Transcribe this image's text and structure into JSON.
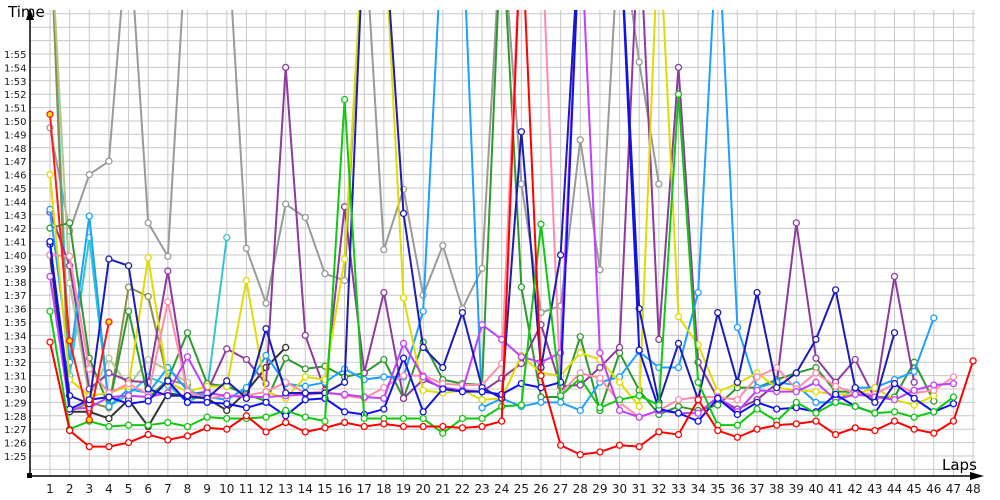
{
  "chart_data": {
    "type": "line",
    "title": "",
    "ylabel": "Time",
    "xlabel": "Laps",
    "ylim_seconds": [
      84,
      118
    ],
    "y_ticks": [
      {
        "value": 85,
        "label": "1:25"
      },
      {
        "value": 86,
        "label": "1:26"
      },
      {
        "value": 87,
        "label": "1:27"
      },
      {
        "value": 88,
        "label": "1:28"
      },
      {
        "value": 89,
        "label": "1:29"
      },
      {
        "value": 90,
        "label": "1:30"
      },
      {
        "value": 91,
        "label": "1:31"
      },
      {
        "value": 92,
        "label": "1:32"
      },
      {
        "value": 93,
        "label": "1:33"
      },
      {
        "value": 94,
        "label": "1:34"
      },
      {
        "value": 95,
        "label": "1:35"
      },
      {
        "value": 96,
        "label": "1:36"
      },
      {
        "value": 97,
        "label": "1:37"
      },
      {
        "value": 98,
        "label": "1:38"
      },
      {
        "value": 99,
        "label": "1:39"
      },
      {
        "value": 100,
        "label": "1:40"
      },
      {
        "value": 101,
        "label": "1:41"
      },
      {
        "value": 102,
        "label": "1:42"
      },
      {
        "value": 103,
        "label": "1:43"
      },
      {
        "value": 104,
        "label": "1:44"
      },
      {
        "value": 105,
        "label": "1:45"
      },
      {
        "value": 106,
        "label": "1:46"
      },
      {
        "value": 107,
        "label": "1:47"
      },
      {
        "value": 108,
        "label": "1:48"
      },
      {
        "value": 109,
        "label": "1:49"
      },
      {
        "value": 110,
        "label": "1:50"
      },
      {
        "value": 111,
        "label": "1:51"
      },
      {
        "value": 112,
        "label": "1:52"
      },
      {
        "value": 113,
        "label": "1:53"
      },
      {
        "value": 114,
        "label": "1:54"
      },
      {
        "value": 115,
        "label": "1:55"
      }
    ],
    "x_ticks": [
      "1",
      "2",
      "3",
      "4",
      "5",
      "6",
      "7",
      "8",
      "9",
      "10",
      "11",
      "12",
      "13",
      "14",
      "15",
      "16",
      "17",
      "18",
      "19",
      "20",
      "21",
      "22",
      "23",
      "24",
      "25",
      "26",
      "27",
      "28",
      "29",
      "30",
      "31",
      "32",
      "33",
      "34",
      "35",
      "36",
      "37",
      "38",
      "39",
      "40",
      "41",
      "42",
      "43",
      "44",
      "45",
      "46",
      "47",
      "48"
    ],
    "grid": true,
    "series": [
      {
        "name": "gray",
        "color": "#9a9a9a",
        "values": [
          109.5,
          101.8,
          106.0,
          107.0,
          125,
          102.4,
          99.9,
          125,
          125,
          125,
          100.5,
          96.4,
          103.8,
          102.8,
          98.6,
          98.1,
          125,
          100.4,
          104.9,
          97.0,
          100.7,
          96.0,
          99.0,
          125,
          105.3,
          95.7,
          96.2,
          108.6,
          98.9,
          125,
          114.4,
          105.3
        ]
      },
      {
        "name": "cyan",
        "color": "#33c6d0",
        "values": [
          125,
          91.0,
          101.3,
          88.7,
          89.6,
          90.9,
          90.3,
          89.0,
          89.8,
          101.3
        ]
      },
      {
        "name": "olive",
        "color": "#8e8e4a",
        "values": [
          125,
          88.3,
          89.0,
          88.6,
          97.6,
          96.9,
          90.7,
          90.3
        ]
      },
      {
        "name": "khaki",
        "color": "#b4c88c",
        "values": [
          125,
          97.9,
          89.4,
          92.3,
          90.2,
          92.2,
          91.4,
          90.5
        ]
      },
      {
        "name": "black",
        "color": "#333333",
        "values": [
          100.0,
          88.3,
          88.3,
          87.8,
          89.2,
          87.2,
          89.7,
          89.4,
          89.3,
          88.4,
          89.8,
          91.6,
          93.1
        ]
      },
      {
        "name": "dark-green",
        "color": "#2e9a2e",
        "values": [
          102.0,
          102.4,
          92.3,
          88.7,
          95.8,
          89.3,
          90.7,
          94.2,
          90.4,
          90.2,
          89.6,
          89.1,
          92.3,
          91.5,
          91.7,
          90.9,
          91.2,
          92.2,
          89.3,
          93.5,
          90.7,
          90.4,
          90.3,
          125,
          97.6,
          89.4,
          89.4,
          93.9,
          88.4,
          92.7,
          89.9,
          88.1,
          88.7,
          88.4,
          88.8,
          90.1,
          90.1,
          90.7,
          91.2,
          91.6,
          89.8,
          89.8,
          89.4,
          89.4,
          92.0,
          89.1
        ]
      },
      {
        "name": "purple",
        "color": "#8e3a9e",
        "values": [
          103.2,
          99.2,
          90.0,
          91.2,
          90.6,
          90.5,
          98.8,
          89.6,
          89.8,
          93.0,
          92.2,
          90.4,
          114.0,
          94.0,
          89.9,
          103.6,
          91.2,
          97.2,
          89.3,
          90.7,
          90.1,
          89.9,
          89.8,
          90.8,
          91.9,
          94.8,
          90.2,
          90.3,
          91.6,
          93.1,
          125,
          93.7,
          114.0,
          92.0,
          89.3,
          88.5,
          89.2,
          90.4,
          102.4,
          92.3,
          90.5,
          92.2,
          89.3,
          98.4,
          90.5
        ]
      },
      {
        "name": "light-blue",
        "color": "#1ea0ff",
        "values": [
          103.4,
          92.0,
          102.9,
          88.7,
          90.0,
          89.7,
          91.6,
          89.9,
          89.4,
          89.2,
          90.1,
          92.5,
          90.4,
          90.2,
          90.5,
          91.5,
          90.7,
          90.9,
          90.9,
          95.8,
          125,
          125,
          88.6,
          89.3,
          88.7,
          89.0,
          89.0,
          88.4,
          90.5,
          90.9,
          92.8,
          91.6,
          91.6,
          97.2,
          125,
          94.6,
          90.1,
          90.5,
          90.3,
          89.0,
          89.0,
          90.1,
          90.1,
          90.7,
          91.3,
          95.3
        ]
      },
      {
        "name": "yellow",
        "color": "#e0dc00",
        "values": [
          106.0,
          90.7,
          89.5,
          89.7,
          90.2,
          99.8,
          90.5,
          89.8,
          90.2,
          90.2,
          98.1,
          89.8,
          89.3,
          90.9,
          90.7,
          99.7,
          125,
          125,
          96.8,
          89.9,
          89.7,
          89.9,
          89.2,
          89.3,
          92.5,
          91.2,
          91.0,
          92.7,
          92.2,
          90.5,
          88.7,
          125,
          95.4,
          93.3,
          89.8,
          90.4,
          91.2,
          90.1,
          89.9,
          89.8,
          89.6,
          89.6,
          90.1,
          89.2,
          88.8,
          89.5
        ]
      },
      {
        "name": "pink",
        "color": "#ff8caa",
        "values": [
          100.0,
          99.9,
          91.5,
          89.7,
          90.4,
          89.6,
          96.5,
          89.8,
          89.3,
          89.5,
          89.5,
          89.8,
          90.5,
          89.7,
          89.8,
          89.5,
          89.3,
          90.1,
          91.0,
          91.0,
          90.4,
          90.3,
          90.3,
          91.9,
          125,
          125,
          89.7,
          91.2,
          90.8,
          89.0,
          87.9,
          88.4,
          89.2,
          89.4,
          89.4,
          89.2,
          90.9,
          91.6,
          90.0,
          91.2,
          90.2,
          89.7,
          89.6,
          90.4,
          89.7,
          89.9,
          90.9
        ]
      },
      {
        "name": "violet",
        "color": "#c040ff",
        "values": [
          98.4,
          88.5,
          88.6,
          89.4,
          89.5,
          89.4,
          89.7,
          92.4,
          89.7,
          89.5,
          89.4,
          89.4,
          89.5,
          89.6,
          89.7,
          89.6,
          89.4,
          89.3,
          93.4,
          90.9,
          90.0,
          89.9,
          94.8,
          93.7,
          92.4,
          92.0,
          92.7,
          125,
          92.7,
          88.4,
          87.9,
          88.4,
          88.2,
          88.2,
          89.4,
          88.3,
          89.9,
          89.8,
          89.8,
          90.5,
          89.2,
          89.6,
          89.4,
          89.2,
          89.9,
          90.3,
          90.4
        ]
      },
      {
        "name": "navy",
        "color": "#1c1cb4",
        "values": [
          100.8,
          89.5,
          88.9,
          99.7,
          99.2,
          90.0,
          89.5,
          89.5,
          89.3,
          90.6,
          89.3,
          94.5,
          89.7,
          89.7,
          89.7,
          90.5,
          125,
          125,
          103.1,
          93.1,
          91.6,
          95.7,
          90.1,
          89.3,
          109.2,
          91.6,
          100.0,
          125,
          125,
          125,
          96.0,
          89.0,
          93.4,
          89.2,
          95.7,
          90.5,
          97.2,
          90.1,
          91.2,
          93.7,
          97.4,
          90.1,
          89.0,
          94.2
        ]
      },
      {
        "name": "blue",
        "color": "#1010ee",
        "values": [
          101.0,
          88.5,
          89.2,
          89.4,
          88.9,
          89.1,
          90.6,
          89.0,
          89.0,
          88.9,
          88.6,
          89.0,
          88.0,
          89.2,
          89.3,
          88.3,
          88.1,
          88.5,
          92.3,
          88.3,
          90.0,
          89.8,
          89.8,
          89.6,
          90.4,
          90.1,
          90.5,
          125,
          125,
          125,
          92.9,
          88.5,
          88.2,
          87.6,
          89.3,
          88.1,
          89.0,
          88.5,
          88.6,
          88.3,
          89.6,
          88.7,
          88.2,
          90.4,
          89.3,
          88.3,
          88.9
        ]
      },
      {
        "name": "green",
        "color": "#10c810",
        "values": [
          95.8,
          87.0,
          87.6,
          87.2,
          87.3,
          87.3,
          87.5,
          87.2,
          87.9,
          87.8,
          87.8,
          87.9,
          88.4,
          87.9,
          87.6,
          111.6,
          87.8,
          87.8,
          87.8,
          87.8,
          86.7,
          87.8,
          87.8,
          88.7,
          88.8,
          102.3,
          89.5,
          90.8,
          88.6,
          89.2,
          89.5,
          88.8,
          112.0,
          90.5,
          87.3,
          87.3,
          88.5,
          87.6,
          89.0,
          88.2,
          89.0,
          88.7,
          88.2,
          88.3,
          87.9,
          88.3,
          89.4
        ]
      },
      {
        "name": "red-2",
        "color": "#ff1a1a",
        "fill": "#ffe000",
        "values": [
          110.5,
          93.6,
          87.7,
          95.0
        ]
      },
      {
        "name": "red",
        "color": "#ff0000",
        "values": [
          93.5,
          86.9,
          85.7,
          85.7,
          86.0,
          86.6,
          86.2,
          86.5,
          87.1,
          87.0,
          88.0,
          86.8,
          87.5,
          86.8,
          87.1,
          87.5,
          87.2,
          87.4,
          87.2,
          87.2,
          87.2,
          87.1,
          87.2,
          87.6,
          125,
          91.0,
          85.8,
          85.1,
          85.3,
          85.8,
          85.7,
          86.8,
          86.6,
          89.2,
          86.9,
          86.4,
          87.0,
          87.3,
          87.4,
          87.6,
          86.6,
          87.1,
          86.9,
          87.6,
          87.0,
          86.7,
          87.6,
          92.1
        ]
      }
    ]
  }
}
